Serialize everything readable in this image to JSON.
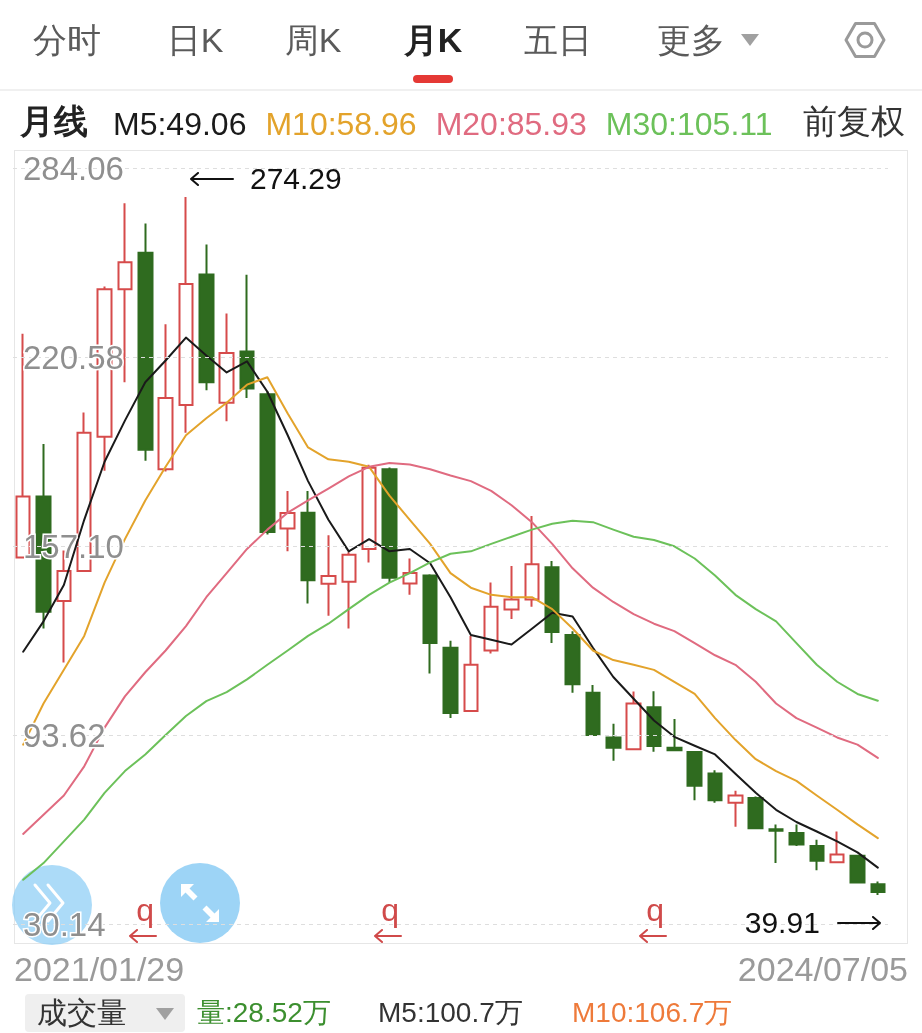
{
  "chart_data": {
    "type": "candlestick",
    "categories": [
      null,
      null,
      null,
      null,
      null,
      null,
      null,
      null,
      null,
      null,
      null,
      null,
      null,
      null,
      null,
      null,
      null,
      null,
      null,
      null,
      null,
      null,
      null,
      null,
      null,
      null,
      null,
      null,
      null,
      null,
      null,
      null,
      null,
      null,
      null,
      null,
      null,
      null,
      null,
      null,
      null,
      null,
      null
    ],
    "ohlc": [
      [
        153.2,
        228.4,
        153.2,
        173.7
      ],
      [
        173.7,
        191.4,
        129.4,
        135.0
      ],
      [
        138.6,
        155.6,
        118.0,
        148.7
      ],
      [
        148.7,
        201.9,
        148.7,
        195.1
      ],
      [
        193.8,
        244.3,
        182.4,
        243.3
      ],
      [
        243.3,
        272.2,
        212.1,
        252.4
      ],
      [
        255.6,
        265.4,
        185.7,
        189.4
      ],
      [
        182.9,
        231.6,
        182.1,
        206.8
      ],
      [
        204.5,
        274.29,
        195.1,
        245.1
      ],
      [
        248.3,
        258.4,
        209.4,
        212.1
      ],
      [
        205.2,
        235.2,
        199.0,
        221.9
      ],
      [
        222.4,
        248.2,
        206.8,
        210.0
      ],
      [
        208.1,
        209.0,
        161.0,
        161.8
      ],
      [
        163.0,
        175.6,
        155.3,
        168.2
      ],
      [
        168.3,
        175.6,
        137.8,
        145.6
      ],
      [
        144.4,
        160.7,
        133.7,
        147.0
      ],
      [
        145.1,
        155.0,
        129.4,
        154.2
      ],
      [
        156.1,
        184.4,
        151.6,
        183.4
      ],
      [
        182.9,
        183.5,
        144.8,
        146.4
      ],
      [
        144.5,
        152.9,
        140.7,
        148.0
      ],
      [
        147.2,
        147.6,
        114.3,
        124.5
      ],
      [
        122.9,
        125.3,
        99.3,
        101.0
      ],
      [
        101.7,
        126.9,
        101.7,
        117.2
      ],
      [
        122.0,
        144.8,
        121.0,
        136.7
      ],
      [
        135.8,
        150.4,
        132.6,
        139.1
      ],
      [
        139.1,
        167.2,
        136.7,
        151.0
      ],
      [
        150.0,
        152.1,
        124.5,
        128.2
      ],
      [
        127.2,
        128.5,
        107.8,
        110.7
      ],
      [
        107.8,
        110.4,
        93.4,
        93.6
      ],
      [
        92.8,
        97.4,
        85.0,
        89.3
      ],
      [
        88.8,
        108.2,
        88.8,
        104.2
      ],
      [
        102.9,
        108.3,
        88.0,
        89.9
      ],
      [
        89.3,
        99.0,
        88.3,
        88.5
      ],
      [
        87.9,
        88.2,
        71.7,
        76.6
      ],
      [
        80.7,
        81.8,
        70.9,
        71.7
      ],
      [
        70.9,
        74.9,
        62.8,
        73.3
      ],
      [
        72.5,
        73.0,
        62.0,
        62.3
      ],
      [
        62.0,
        63.6,
        50.6,
        61.5
      ],
      [
        60.7,
        63.6,
        56.3,
        56.8
      ],
      [
        56.3,
        58.4,
        48.2,
        51.4
      ],
      [
        50.9,
        61.2,
        50.9,
        53.5
      ],
      [
        53.1,
        53.1,
        43.8,
        44.1
      ],
      [
        43.5,
        44.4,
        39.91,
        40.9
      ]
    ],
    "colors": [
      "#d64b4b",
      "#2f6b1f",
      "#d64b4b",
      "#d64b4b",
      "#d64b4b",
      "#d64b4b",
      "#2f6b1f",
      "#d64b4b",
      "#d64b4b",
      "#2f6b1f",
      "#d64b4b",
      "#2f6b1f",
      "#2f6b1f",
      "#d64b4b",
      "#2f6b1f",
      "#d64b4b",
      "#d64b4b",
      "#d64b4b",
      "#2f6b1f",
      "#d64b4b",
      "#2f6b1f",
      "#2f6b1f",
      "#d64b4b",
      "#d64b4b",
      "#d64b4b",
      "#d64b4b",
      "#2f6b1f",
      "#2f6b1f",
      "#2f6b1f",
      "#2f6b1f",
      "#d64b4b",
      "#2f6b1f",
      "#2f6b1f",
      "#2f6b1f",
      "#2f6b1f",
      "#d64b4b",
      "#2f6b1f",
      "#2f6b1f",
      "#2f6b1f",
      "#2f6b1f",
      "#d64b4b",
      "#2f6b1f",
      "#2f6b1f"
    ],
    "series": [
      {
        "name": "M5:49.06",
        "type": "line",
        "color": "#1a1a1a",
        "values": [
          121.6,
          131.8,
          144.0,
          165.9,
          185.4,
          199.2,
          212.1,
          219.4,
          227.1,
          221.1,
          215.4,
          219.1,
          208.9,
          194.3,
          178.9,
          165.9,
          155.3,
          159.4,
          155.3,
          156.1,
          151.3,
          139.9,
          127.2,
          125.6,
          124.0,
          129.3,
          134.7,
          133.4,
          122.9,
          113.1,
          105.8,
          98.5,
          93.0,
          90.0,
          87.1,
          80.6,
          74.2,
          68.5,
          64.4,
          61.2,
          57.9,
          54.2,
          49.06
        ]
      },
      {
        "name": "M10:58.96",
        "type": "line",
        "color": "#e3a32b",
        "values": [
          90.4,
          104.2,
          115.5,
          126.9,
          144.8,
          159.4,
          172.4,
          183.7,
          194.3,
          200.0,
          205.2,
          211.3,
          213.8,
          201.6,
          190.2,
          186.2,
          185.4,
          183.7,
          174.0,
          165.9,
          157.8,
          148.0,
          143.1,
          140.7,
          139.9,
          139.9,
          135.9,
          129.4,
          122.0,
          118.8,
          117.2,
          115.5,
          111.5,
          107.4,
          99.3,
          92.0,
          85.5,
          81.5,
          78.2,
          73.3,
          68.5,
          63.6,
          58.96
        ]
      },
      {
        "name": "M20:85.93",
        "type": "line",
        "color": "#e06b80",
        "values": [
          60.4,
          66.8,
          73.3,
          83.1,
          96.1,
          106.6,
          114.7,
          122.0,
          130.2,
          139.9,
          148.0,
          156.1,
          162.6,
          168.3,
          172.4,
          176.4,
          180.5,
          183.7,
          185.0,
          184.5,
          182.9,
          180.8,
          178.9,
          175.6,
          170.8,
          165.1,
          157.8,
          149.6,
          143.1,
          138.3,
          134.2,
          131.0,
          128.5,
          124.5,
          120.4,
          117.2,
          111.5,
          104.2,
          99.3,
          96.1,
          92.8,
          90.4,
          85.93
        ]
      },
      {
        "name": "M30:105.11",
        "type": "line",
        "color": "#6cc15a",
        "values": [
          45.0,
          50.6,
          57.9,
          65.2,
          74.2,
          81.5,
          87.1,
          93.6,
          100.0,
          105.0,
          108.0,
          112.3,
          117.2,
          122.0,
          126.9,
          131.0,
          135.9,
          140.7,
          144.8,
          148.0,
          151.6,
          154.5,
          155.3,
          157.8,
          160.2,
          162.6,
          164.6,
          165.6,
          165.1,
          162.6,
          160.2,
          159.1,
          157.0,
          152.9,
          147.2,
          140.7,
          135.9,
          131.8,
          124.5,
          117.2,
          111.5,
          107.4,
          105.11
        ]
      }
    ],
    "ylim": [
      30.14,
      284.06
    ],
    "yticks": [
      30.14,
      93.62,
      {
        "value": 157.1,
        "label": "157.10"
      },
      220.58,
      284.06
    ],
    "grid": "y",
    "legend": "top",
    "legend_title": "月线",
    "marker": "none",
    "line_style": "solid",
    "annotations": [
      "分时",
      "日K",
      "周K",
      "月K",
      "五日",
      "更多",
      "前复权",
      "q",
      "q",
      "q",
      "274.29",
      "39.91",
      "2021/01/29",
      "2024/07/05",
      "成交量",
      "量:28.52万",
      "M5:100.7万",
      "M10:106.7万"
    ]
  }
}
